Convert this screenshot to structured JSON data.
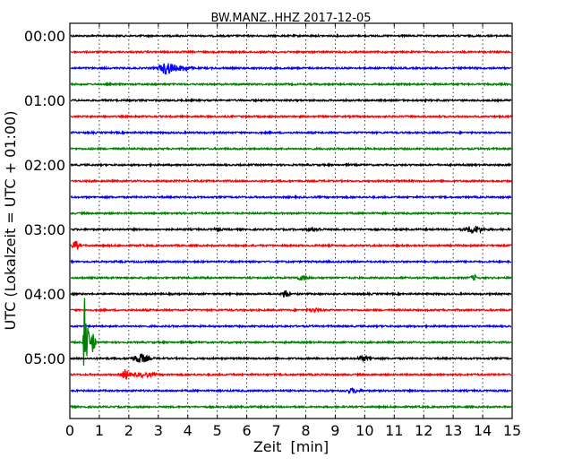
{
  "chart_data": {
    "type": "line",
    "title": "BW.MANZ..HHZ 2017-12-05",
    "xlabel": "Zeit  [min]",
    "ylabel": "UTC (Lokalzeit = UTC + 01:00)",
    "xlim": [
      0,
      15
    ],
    "xticks": [
      "0",
      "1",
      "2",
      "3",
      "4",
      "5",
      "6",
      "7",
      "8",
      "9",
      "10",
      "11",
      "12",
      "13",
      "14",
      "15"
    ],
    "yticks": [
      {
        "label": "00:00",
        "trace": 0
      },
      {
        "label": "01:00",
        "trace": 4
      },
      {
        "label": "02:00",
        "trace": 8
      },
      {
        "label": "03:00",
        "trace": 12
      },
      {
        "label": "04:00",
        "trace": 16
      },
      {
        "label": "05:00",
        "trace": 20
      }
    ],
    "grid": "vertical dotted at each minute",
    "trace_minutes": 15,
    "trace_count": 24,
    "colors": [
      "#000000",
      "#ff0000",
      "#0000ff",
      "#008000"
    ],
    "events": [
      {
        "trace": 2,
        "minute": 3.3,
        "amplitude": 0.35,
        "width": 0.25
      },
      {
        "trace": 2,
        "minute": 3.85,
        "amplitude": 0.15,
        "width": 0.2
      },
      {
        "trace": 12,
        "minute": 5.0,
        "amplitude": 0.1,
        "width": 0.1
      },
      {
        "trace": 12,
        "minute": 8.3,
        "amplitude": 0.1,
        "width": 0.2
      },
      {
        "trace": 12,
        "minute": 13.7,
        "amplitude": 0.2,
        "width": 0.3
      },
      {
        "trace": 13,
        "minute": 0.2,
        "amplitude": 0.25,
        "width": 0.12
      },
      {
        "trace": 15,
        "minute": 7.9,
        "amplitude": 0.12,
        "width": 0.2
      },
      {
        "trace": 15,
        "minute": 13.7,
        "amplitude": 0.15,
        "width": 0.1
      },
      {
        "trace": 16,
        "minute": 7.3,
        "amplitude": 0.25,
        "width": 0.1
      },
      {
        "trace": 17,
        "minute": 8.3,
        "amplitude": 0.08,
        "width": 0.2
      },
      {
        "trace": 19,
        "minute": 0.5,
        "amplitude": 3.4,
        "width": 0.03
      },
      {
        "trace": 19,
        "minute": 0.58,
        "amplitude": 1.0,
        "width": 0.08
      },
      {
        "trace": 19,
        "minute": 0.8,
        "amplitude": 0.7,
        "width": 0.06
      },
      {
        "trace": 20,
        "minute": 2.4,
        "amplitude": 0.25,
        "width": 0.25
      },
      {
        "trace": 20,
        "minute": 10.0,
        "amplitude": 0.12,
        "width": 0.2
      },
      {
        "trace": 21,
        "minute": 1.9,
        "amplitude": 0.3,
        "width": 0.12
      },
      {
        "trace": 21,
        "minute": 2.5,
        "amplitude": 0.12,
        "width": 0.3
      },
      {
        "trace": 22,
        "minute": 9.6,
        "amplitude": 0.12,
        "width": 0.2
      }
    ]
  }
}
